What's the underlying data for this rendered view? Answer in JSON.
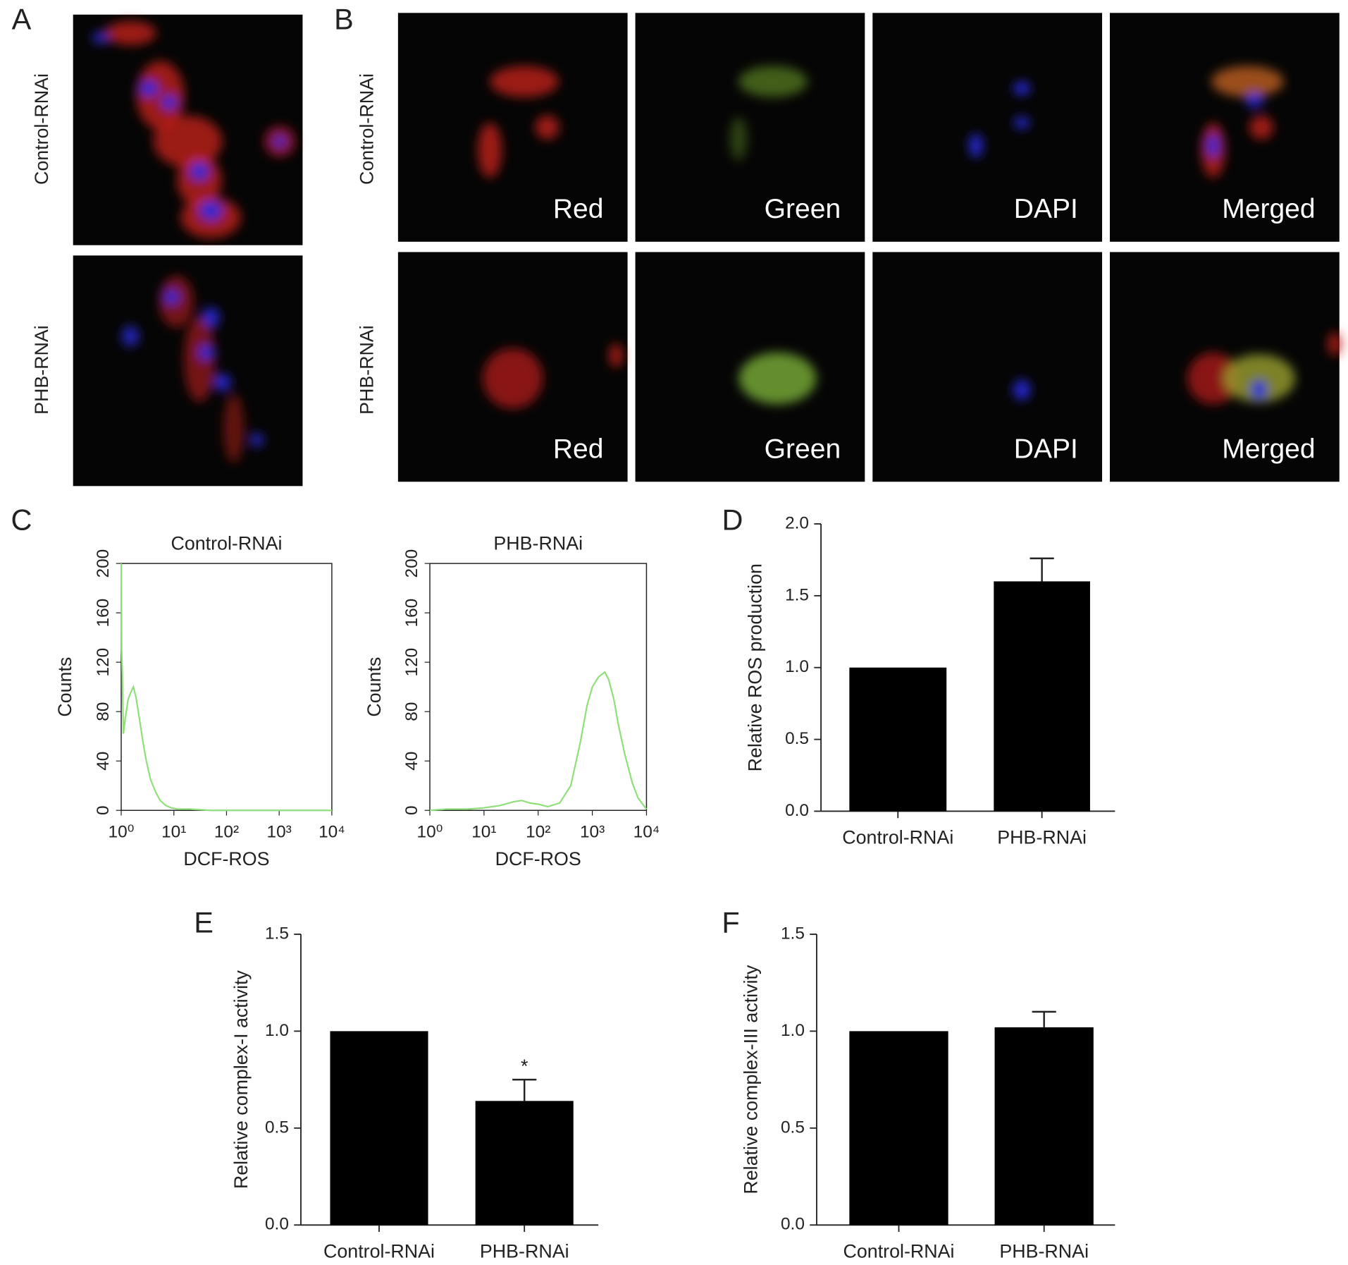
{
  "panel_letters": [
    "A",
    "B",
    "C",
    "D",
    "E",
    "F"
  ],
  "micrographs": {
    "rows": [
      "Control-RNAi",
      "PHB-RNAi"
    ],
    "channels": [
      "Red",
      "Green",
      "DAPI",
      "Merged"
    ]
  },
  "chart_data": [
    {
      "type": "line",
      "title": "Control-RNAi",
      "xlabel": "DCF-ROS",
      "ylabel": "Counts",
      "log_x": true,
      "x": [
        1,
        1.02,
        1.05,
        1.1,
        1.2,
        1.35,
        1.5,
        1.7,
        1.9,
        2.2,
        2.6,
        3,
        3.6,
        4.5,
        5.5,
        7,
        9,
        12,
        20,
        50,
        200,
        1000,
        10000
      ],
      "values": [
        200,
        130,
        110,
        62,
        75,
        90,
        95,
        100,
        92,
        75,
        55,
        40,
        25,
        15,
        8,
        4,
        2,
        1,
        1,
        0,
        0,
        0,
        0
      ],
      "color": "#8fe07a",
      "xlim": [
        1,
        10000
      ],
      "xticks": [
        {
          "value": 1,
          "label": "10⁰"
        },
        {
          "value": 10,
          "label": "10¹"
        },
        {
          "value": 100,
          "label": "10²"
        },
        {
          "value": 1000,
          "label": "10³"
        },
        {
          "value": 10000,
          "label": "10⁴"
        }
      ],
      "ylim": [
        0,
        200
      ],
      "yticks": [
        0,
        40,
        80,
        120,
        160,
        200
      ]
    },
    {
      "type": "line",
      "title": "PHB-RNAi",
      "xlabel": "DCF-ROS",
      "ylabel": "Counts",
      "log_x": true,
      "x": [
        1,
        2,
        5,
        10,
        20,
        35,
        50,
        70,
        100,
        150,
        250,
        400,
        600,
        800,
        1000,
        1300,
        1700,
        2000,
        2500,
        3000,
        4000,
        5500,
        7000,
        10000
      ],
      "values": [
        0,
        1,
        1,
        2,
        4,
        7,
        8,
        6,
        5,
        3,
        6,
        20,
        55,
        85,
        100,
        108,
        112,
        106,
        90,
        70,
        45,
        22,
        10,
        1
      ],
      "color": "#8fe07a",
      "xlim": [
        1,
        10000
      ],
      "xticks": [
        {
          "value": 1,
          "label": "10⁰"
        },
        {
          "value": 10,
          "label": "10¹"
        },
        {
          "value": 100,
          "label": "10²"
        },
        {
          "value": 1000,
          "label": "10³"
        },
        {
          "value": 10000,
          "label": "10⁴"
        }
      ],
      "ylim": [
        0,
        200
      ],
      "yticks": [
        0,
        40,
        80,
        120,
        160,
        200
      ]
    },
    {
      "type": "bar",
      "ylabel": "Relative ROS production",
      "categories": [
        "Control-RNAi",
        "PHB-RNAi"
      ],
      "values": [
        1.0,
        1.6
      ],
      "errors": [
        null,
        0.16
      ],
      "color": "#000000",
      "ylim": [
        0,
        2
      ],
      "yticks": [
        {
          "value": 0,
          "label": "0.0"
        },
        0.5,
        {
          "value": 1,
          "label": "1.0"
        },
        1.5,
        {
          "value": 2,
          "label": "2.0"
        }
      ]
    },
    {
      "type": "bar",
      "ylabel": "Relative complex-I activity",
      "categories": [
        "Control-RNAi",
        "PHB-RNAi"
      ],
      "values": [
        1.0,
        0.64
      ],
      "errors": [
        null,
        0.11
      ],
      "significance": [
        null,
        "*"
      ],
      "color": "#000000",
      "ylim": [
        0,
        1.5
      ],
      "yticks": [
        {
          "value": 0,
          "label": "0.0"
        },
        0.5,
        {
          "value": 1,
          "label": "1.0"
        },
        1.5
      ]
    },
    {
      "type": "bar",
      "ylabel": "Relative complex-III activity",
      "categories": [
        "Control-RNAi",
        "PHB-RNAi"
      ],
      "values": [
        1.0,
        1.02
      ],
      "errors": [
        null,
        0.08
      ],
      "color": "#000000",
      "ylim": [
        0,
        1.5
      ],
      "yticks": [
        {
          "value": 0,
          "label": "0.0"
        },
        0.5,
        {
          "value": 1,
          "label": "1.0"
        },
        1.5
      ]
    }
  ]
}
